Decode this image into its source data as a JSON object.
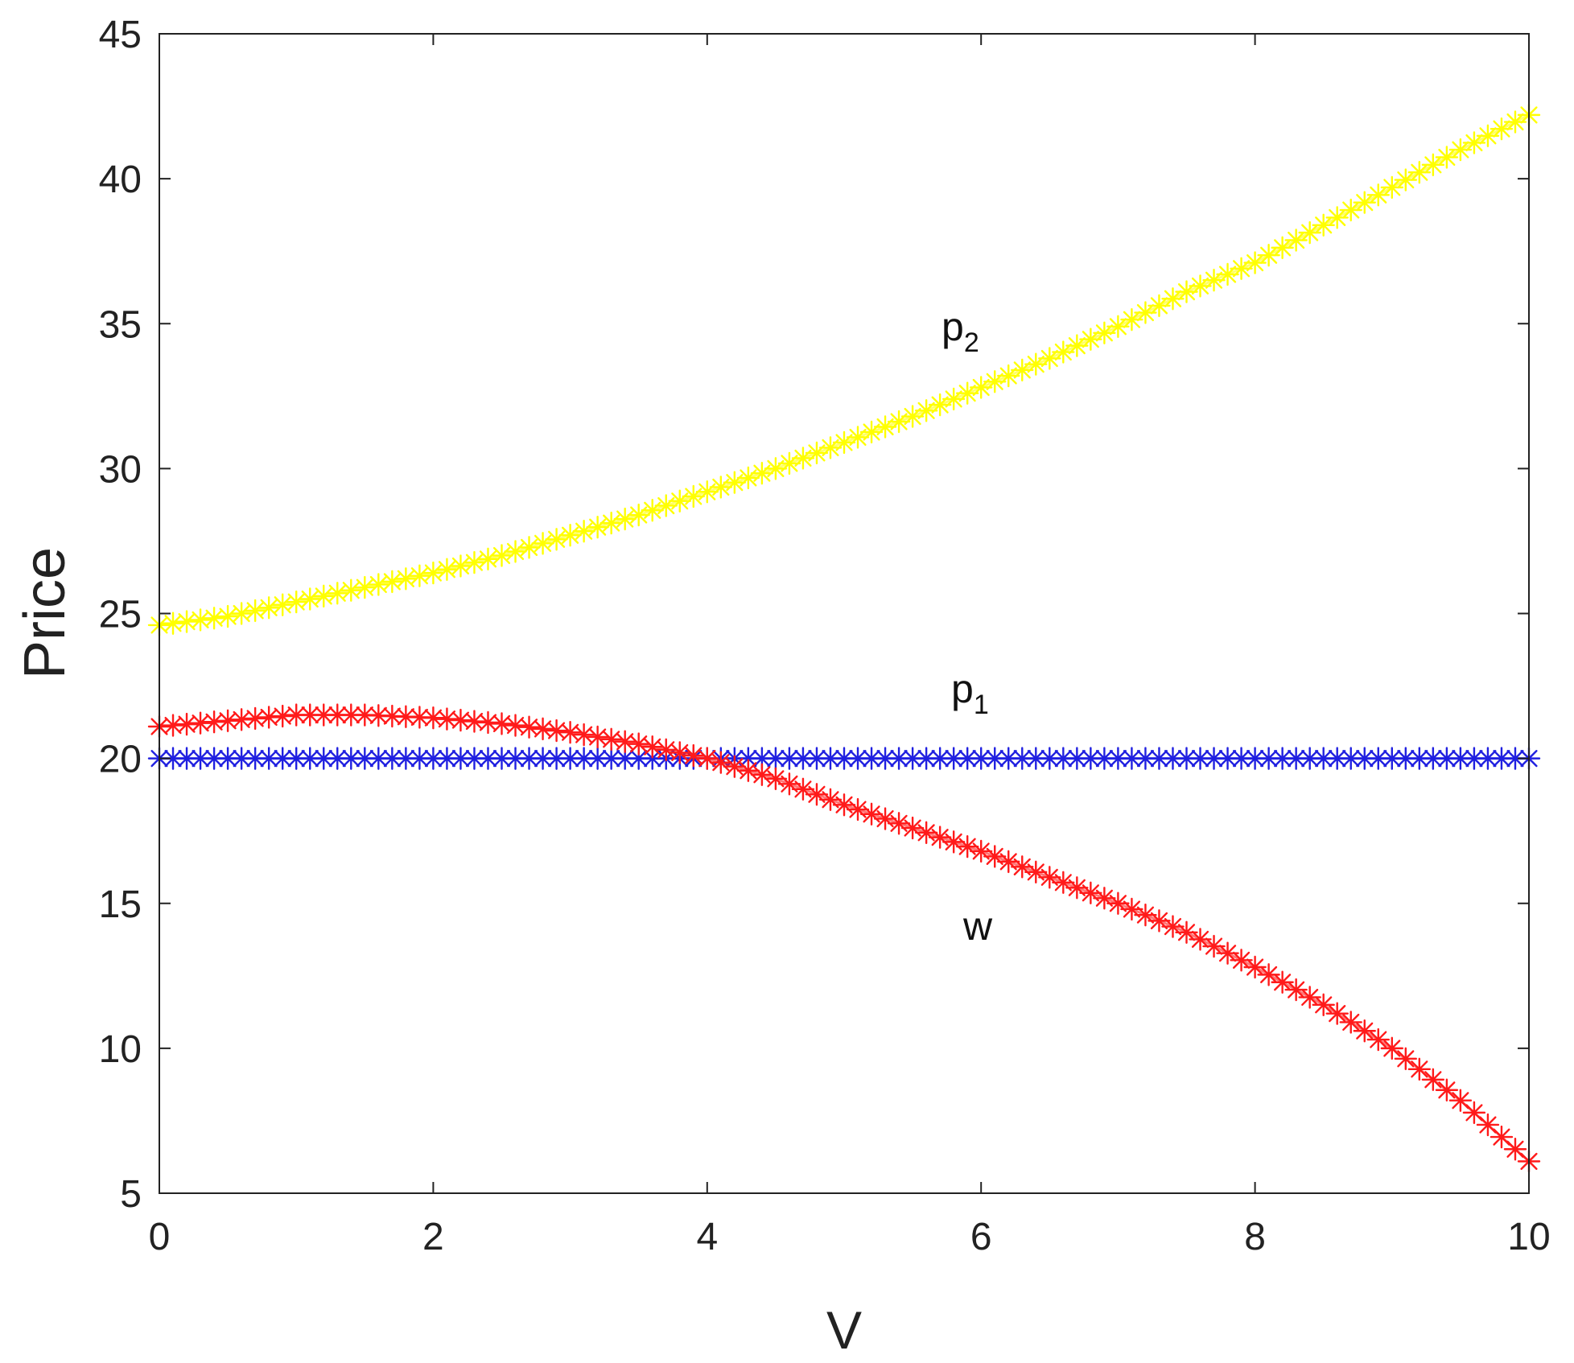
{
  "chart_data": {
    "type": "line",
    "xlabel": "V",
    "ylabel": "Price",
    "xlim": [
      0,
      10
    ],
    "ylim": [
      5,
      45
    ],
    "xticks": [
      "0",
      "2",
      "4",
      "6",
      "8",
      "10"
    ],
    "yticks": [
      "5",
      "10",
      "15",
      "20",
      "25",
      "30",
      "35",
      "40",
      "45"
    ],
    "grid": false,
    "legend": "none",
    "marker": "asterisk",
    "x": [
      0,
      0.5,
      1,
      1.5,
      2,
      2.5,
      3,
      3.5,
      4,
      4.5,
      5,
      5.5,
      6,
      6.5,
      7,
      7.5,
      8,
      8.5,
      9,
      9.5,
      10
    ],
    "series": [
      {
        "label_main": "p",
        "label_sub": "2",
        "color": "#ffff00",
        "values": [
          24.6,
          24.9,
          25.4,
          25.9,
          26.4,
          27.0,
          27.7,
          28.4,
          29.2,
          30.0,
          30.9,
          31.8,
          32.8,
          33.8,
          34.9,
          36.1,
          37.1,
          38.4,
          39.7,
          41.0,
          42.2
        ]
      },
      {
        "label_main": "p",
        "label_sub": "1",
        "color": "#2020e0",
        "values": [
          20.0,
          20.0,
          20.0,
          20.0,
          20.0,
          20.0,
          20.0,
          20.0,
          20.0,
          20.0,
          20.0,
          20.0,
          20.0,
          20.0,
          20.0,
          20.0,
          20.0,
          20.0,
          20.0,
          20.0,
          20.0
        ]
      },
      {
        "label_main": "w",
        "label_sub": "",
        "color": "#ff1a1a",
        "values": [
          21.1,
          21.3,
          21.5,
          21.5,
          21.4,
          21.2,
          20.9,
          20.5,
          20.0,
          19.3,
          18.4,
          17.6,
          16.8,
          15.9,
          15.0,
          14.0,
          12.8,
          11.5,
          10.0,
          8.2,
          6.1
        ]
      }
    ]
  }
}
